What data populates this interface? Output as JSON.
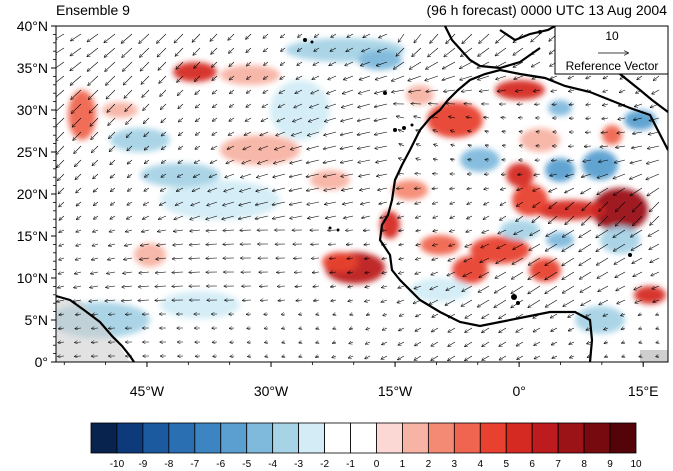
{
  "title_left": "Ensemble 9",
  "title_right": "(96 h forecast) 0000 UTC 13 Aug 2004",
  "map": {
    "lon_range": [
      -56,
      18
    ],
    "lat_range": [
      0,
      40
    ],
    "lat_labels": [
      "0°",
      "5°N",
      "10°N",
      "15°N",
      "20°N",
      "25°N",
      "30°N",
      "35°N",
      "40°N"
    ],
    "lon_labels": [
      "45°W",
      "30°W",
      "15°W",
      "0°",
      "15°E"
    ]
  },
  "reference_vector": {
    "value": "10",
    "label": "Reference Vector"
  },
  "colorbar": {
    "labels": [
      "-10",
      "-9",
      "-8",
      "-7",
      "-6",
      "-5",
      "-4",
      "-3",
      "-2",
      "-1",
      "0",
      "1",
      "2",
      "3",
      "4",
      "5",
      "6",
      "7",
      "8",
      "9",
      "10"
    ],
    "colors": [
      "#08234e",
      "#0c3a7a",
      "#1c5aa0",
      "#2b6fb3",
      "#3d85c2",
      "#5a9fd0",
      "#7fb9dc",
      "#a6d3e6",
      "#d3ecf5",
      "#ffffff",
      "#ffffff",
      "#fbd8d4",
      "#f7b3a4",
      "#f48a74",
      "#ef6550",
      "#e8412f",
      "#d52a22",
      "#bd1b1d",
      "#9b1217",
      "#760a0e",
      "#540308"
    ]
  }
}
